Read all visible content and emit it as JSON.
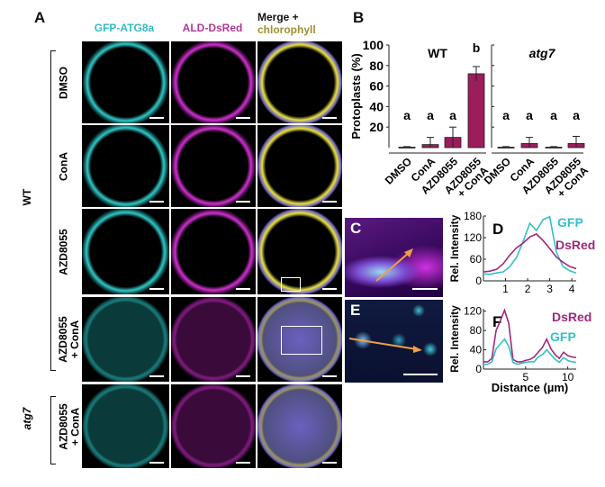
{
  "panel_letters": {
    "a": "A",
    "b": "B",
    "c": "C",
    "d": "D",
    "e": "E",
    "f": "F"
  },
  "columns": [
    "GFP-ATG8a",
    "ALD-DsRed",
    "Merge +",
    "chlorophyll"
  ],
  "groups": {
    "wt": "WT",
    "atg7": "atg7"
  },
  "rows": [
    {
      "label": "DMSO",
      "label2": ""
    },
    {
      "label": "ConA",
      "label2": ""
    },
    {
      "label": "AZD8055",
      "label2": ""
    },
    {
      "label": "AZD8055",
      "label2": "+ ConA"
    },
    {
      "label": "AZD8055",
      "label2": "+ ConA"
    }
  ],
  "colors": {
    "gfp": "#33c0c8",
    "dsred": "#a0287a",
    "bar": "#9b1d5c",
    "chlorophyll": "#a09030"
  },
  "chart_data": [
    {
      "type": "bar",
      "title_left": "WT",
      "title_right": "atg7",
      "ylabel": "Protoplasts (%)",
      "ylim": [
        0,
        100
      ],
      "yticks": [
        20,
        40,
        60,
        80,
        100
      ],
      "groups": [
        {
          "name": "WT",
          "categories": [
            "DMSO",
            "ConA",
            "AZD8055",
            "AZD8055 + ConA"
          ],
          "values": [
            0.5,
            3,
            10,
            72
          ],
          "errors": [
            0.5,
            7,
            10,
            7
          ],
          "letters": [
            "a",
            "a",
            "a",
            "b"
          ]
        },
        {
          "name": "atg7",
          "categories": [
            "DMSO",
            "ConA",
            "AZD8055",
            "AZD8055 + ConA"
          ],
          "values": [
            0.5,
            4,
            0.5,
            4
          ],
          "errors": [
            0.5,
            6,
            0.5,
            7
          ],
          "letters": [
            "a",
            "a",
            "a",
            "a"
          ]
        }
      ]
    },
    {
      "type": "line",
      "panel": "D",
      "ylabel": "Rel. Intensity",
      "xlim": [
        0,
        4.2
      ],
      "ylim": [
        0,
        180
      ],
      "xticks": [
        1,
        2,
        3,
        4
      ],
      "yticks": [
        0,
        60,
        120,
        180
      ],
      "x_step": 0.3,
      "series": [
        {
          "name": "GFP",
          "values": [
            20,
            18,
            22,
            25,
            40,
            65,
            110,
            160,
            140,
            170,
            178,
            80,
            40,
            28,
            22
          ]
        },
        {
          "name": "DsRed",
          "values": [
            25,
            27,
            32,
            48,
            72,
            92,
            105,
            122,
            130,
            112,
            90,
            66,
            52,
            40,
            34
          ]
        }
      ]
    },
    {
      "type": "line",
      "panel": "F",
      "ylabel": "Rel. Intensity",
      "xlabel": "Distance (µm)",
      "xlim": [
        0,
        11
      ],
      "ylim": [
        0,
        125
      ],
      "xticks": [
        5,
        10
      ],
      "yticks": [
        0,
        40,
        80,
        120
      ],
      "x_step": 0.5,
      "series": [
        {
          "name": "DsRed",
          "values": [
            15,
            15,
            22,
            80,
            100,
            122,
            95,
            20,
            15,
            15,
            18,
            20,
            25,
            35,
            45,
            62,
            42,
            30,
            22,
            35,
            28,
            25,
            24
          ]
        },
        {
          "name": "GFP",
          "values": [
            10,
            10,
            15,
            42,
            52,
            62,
            48,
            14,
            10,
            12,
            14,
            15,
            15,
            25,
            30,
            40,
            30,
            20,
            14,
            24,
            18,
            15,
            14
          ]
        }
      ]
    }
  ]
}
